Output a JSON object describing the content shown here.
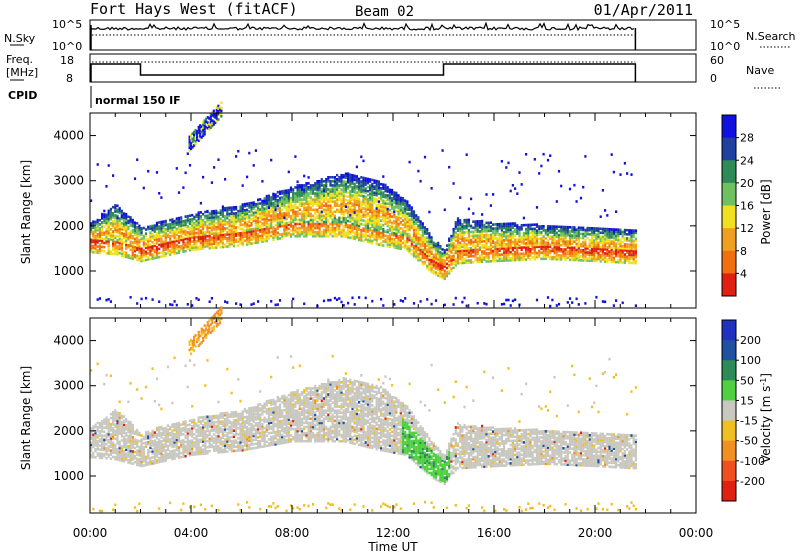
{
  "header": {
    "station": "Fort Hays West (fitACF)",
    "beam": "Beam 02",
    "date": "01/Apr/2011"
  },
  "noise_panel": {
    "left_label": "N.Sky",
    "right_label": "N.Search",
    "left_ticks": [
      "10^5",
      "10^0"
    ],
    "right_ticks": [
      "10^5",
      "10^0"
    ]
  },
  "freq_panel": {
    "left_label_1": "Freq.",
    "left_label_2": "[MHz]",
    "right_label": "Nave",
    "left_ticks": [
      "18",
      "8"
    ],
    "right_ticks": [
      "60",
      "0"
    ]
  },
  "cpid": {
    "label": "CPID",
    "value": "normal 150 IF"
  },
  "x_axis": {
    "label": "Time UT",
    "ticks": [
      "00:00",
      "04:00",
      "08:00",
      "12:00",
      "16:00",
      "20:00",
      "00:00"
    ]
  },
  "chart_data": [
    {
      "type": "heatmap",
      "title": "Power",
      "ylabel": "Slant Range [km]",
      "xlabel": "Time UT",
      "xlim": [
        0,
        24
      ],
      "ylim": [
        180,
        4500
      ],
      "yticks": [
        "1000",
        "2000",
        "3000",
        "4000"
      ],
      "colorbar": {
        "label": "Power [dB]",
        "ticks": [
          "4",
          "8",
          "12",
          "16",
          "20",
          "24",
          "28"
        ],
        "colors": [
          "#1010e0",
          "#2040a0",
          "#2e8a57",
          "#6fc060",
          "#f0e020",
          "#f0a020",
          "#f07010",
          "#e02010"
        ]
      },
      "data_end_hour": 21.6,
      "echo_band": [
        {
          "hour": 0.0,
          "low": 1450,
          "high": 2100
        },
        {
          "hour": 1.0,
          "low": 1400,
          "high": 2500
        },
        {
          "hour": 2.0,
          "low": 1250,
          "high": 2000
        },
        {
          "hour": 4.0,
          "low": 1500,
          "high": 2300
        },
        {
          "hour": 6.0,
          "low": 1600,
          "high": 2500
        },
        {
          "hour": 8.0,
          "low": 1800,
          "high": 2900
        },
        {
          "hour": 10.0,
          "low": 1800,
          "high": 3200
        },
        {
          "hour": 11.5,
          "low": 1600,
          "high": 3000
        },
        {
          "hour": 12.5,
          "low": 1500,
          "high": 2600
        },
        {
          "hour": 13.5,
          "low": 1000,
          "high": 1800
        },
        {
          "hour": 14.0,
          "low": 850,
          "high": 1500
        },
        {
          "hour": 14.5,
          "low": 1200,
          "high": 2200
        },
        {
          "hour": 16.0,
          "low": 1250,
          "high": 2100
        },
        {
          "hour": 18.0,
          "low": 1300,
          "high": 2050
        },
        {
          "hour": 20.0,
          "low": 1250,
          "high": 2000
        },
        {
          "hour": 21.6,
          "low": 1200,
          "high": 1950
        }
      ]
    },
    {
      "type": "heatmap",
      "title": "Velocity",
      "ylabel": "Slant Range [km]",
      "xlabel": "Time UT",
      "xlim": [
        0,
        24
      ],
      "ylim": [
        180,
        4500
      ],
      "yticks": [
        "1000",
        "2000",
        "3000",
        "4000"
      ],
      "colorbar": {
        "label": "Velocity [m s^-1]",
        "ticks": [
          "200",
          "100",
          "50",
          "15",
          "-15",
          "-50",
          "-100",
          "-200"
        ],
        "colors": [
          "#2030c0",
          "#2050a0",
          "#2e8a57",
          "#50d040",
          "#c8c8c0",
          "#f0c020",
          "#f09020",
          "#f05020",
          "#e02010"
        ]
      },
      "data_end_hour": 21.6,
      "echo_band": [
        {
          "hour": 0.0,
          "low": 1450,
          "high": 2100
        },
        {
          "hour": 1.0,
          "low": 1400,
          "high": 2500
        },
        {
          "hour": 2.0,
          "low": 1250,
          "high": 2000
        },
        {
          "hour": 4.0,
          "low": 1500,
          "high": 2300
        },
        {
          "hour": 6.0,
          "low": 1600,
          "high": 2500
        },
        {
          "hour": 8.0,
          "low": 1800,
          "high": 2900
        },
        {
          "hour": 10.0,
          "low": 1800,
          "high": 3200
        },
        {
          "hour": 11.5,
          "low": 1600,
          "high": 3000
        },
        {
          "hour": 12.5,
          "low": 1500,
          "high": 2600
        },
        {
          "hour": 13.5,
          "low": 1000,
          "high": 1800
        },
        {
          "hour": 14.0,
          "low": 850,
          "high": 1500
        },
        {
          "hour": 14.5,
          "low": 1200,
          "high": 2200
        },
        {
          "hour": 16.0,
          "low": 1250,
          "high": 2100
        },
        {
          "hour": 18.0,
          "low": 1300,
          "high": 2050
        },
        {
          "hour": 20.0,
          "low": 1250,
          "high": 2000
        },
        {
          "hour": 21.6,
          "low": 1200,
          "high": 1950
        }
      ]
    }
  ]
}
